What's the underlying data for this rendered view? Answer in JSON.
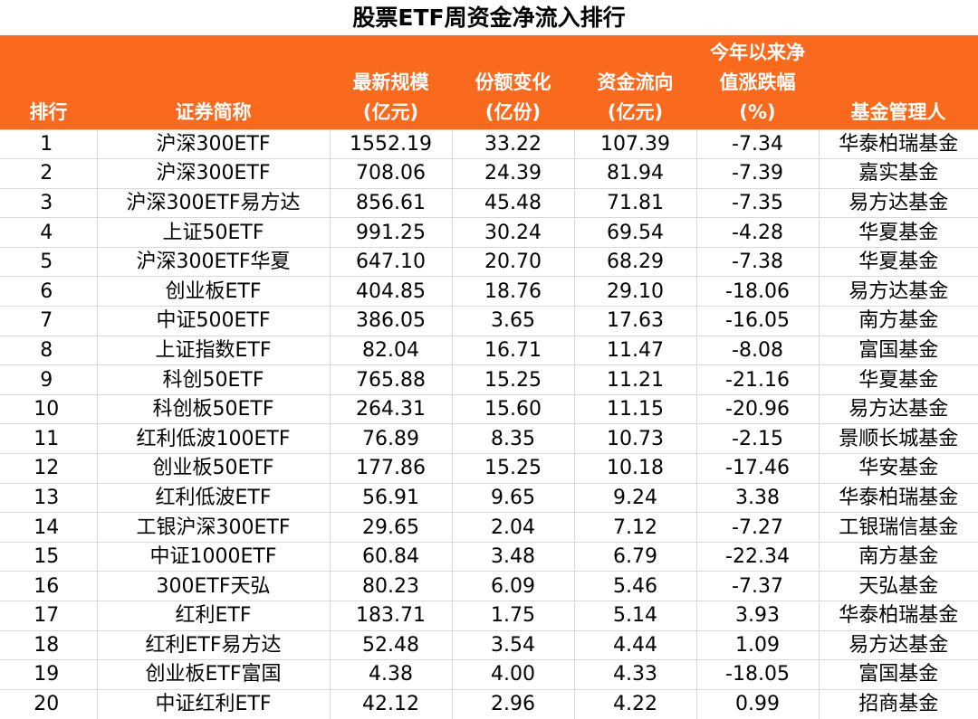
{
  "title": "股票ETF周资金净流入排行",
  "chart_data": {
    "type": "table",
    "title": "股票ETF周资金净流入排行",
    "headers": [
      [
        "排行"
      ],
      [
        "证券简称"
      ],
      [
        "最新规模",
        "(亿元)"
      ],
      [
        "份额变化",
        "(亿份)"
      ],
      [
        "资金流向",
        "(亿元)"
      ],
      [
        "今年以来净",
        "值涨跌幅",
        "(%)"
      ],
      [
        "基金管理人"
      ]
    ],
    "rows": [
      [
        "1",
        "沪深300ETF",
        "1552.19",
        "33.22",
        "107.39",
        "-7.34",
        "华泰柏瑞基金"
      ],
      [
        "2",
        "沪深300ETF",
        "708.06",
        "24.39",
        "81.94",
        "-7.39",
        "嘉实基金"
      ],
      [
        "3",
        "沪深300ETF易方达",
        "856.61",
        "45.48",
        "71.81",
        "-7.35",
        "易方达基金"
      ],
      [
        "4",
        "上证50ETF",
        "991.25",
        "30.24",
        "69.54",
        "-4.28",
        "华夏基金"
      ],
      [
        "5",
        "沪深300ETF华夏",
        "647.10",
        "20.70",
        "68.29",
        "-7.38",
        "华夏基金"
      ],
      [
        "6",
        "创业板ETF",
        "404.85",
        "18.76",
        "29.10",
        "-18.06",
        "易方达基金"
      ],
      [
        "7",
        "中证500ETF",
        "386.05",
        "3.65",
        "17.63",
        "-16.05",
        "南方基金"
      ],
      [
        "8",
        "上证指数ETF",
        "82.04",
        "16.71",
        "11.47",
        "-8.08",
        "富国基金"
      ],
      [
        "9",
        "科创50ETF",
        "765.88",
        "15.25",
        "11.21",
        "-21.16",
        "华夏基金"
      ],
      [
        "10",
        "科创板50ETF",
        "264.31",
        "15.60",
        "11.15",
        "-20.96",
        "易方达基金"
      ],
      [
        "11",
        "红利低波100ETF",
        "76.89",
        "8.35",
        "10.73",
        "-2.15",
        "景顺长城基金"
      ],
      [
        "12",
        "创业板50ETF",
        "177.86",
        "15.25",
        "10.18",
        "-17.46",
        "华安基金"
      ],
      [
        "13",
        "红利低波ETF",
        "56.91",
        "9.65",
        "9.24",
        "3.38",
        "华泰柏瑞基金"
      ],
      [
        "14",
        "工银沪深300ETF",
        "29.65",
        "2.04",
        "7.12",
        "-7.27",
        "工银瑞信基金"
      ],
      [
        "15",
        "中证1000ETF",
        "60.84",
        "3.48",
        "6.79",
        "-22.34",
        "南方基金"
      ],
      [
        "16",
        "300ETF天弘",
        "80.23",
        "6.09",
        "5.46",
        "-7.37",
        "天弘基金"
      ],
      [
        "17",
        "红利ETF",
        "183.71",
        "1.75",
        "5.14",
        "3.93",
        "华泰柏瑞基金"
      ],
      [
        "18",
        "红利ETF易方达",
        "52.48",
        "3.54",
        "4.44",
        "1.09",
        "易方达基金"
      ],
      [
        "19",
        "创业板ETF富国",
        "4.38",
        "4.00",
        "4.33",
        "-18.05",
        "富国基金"
      ],
      [
        "20",
        "中证红利ETF",
        "42.12",
        "2.96",
        "4.22",
        "0.99",
        "招商基金"
      ]
    ]
  },
  "colors": {
    "header_background": "#f96a1e",
    "header_text": "#ffffff",
    "grid_line": "#d9d9d9"
  }
}
